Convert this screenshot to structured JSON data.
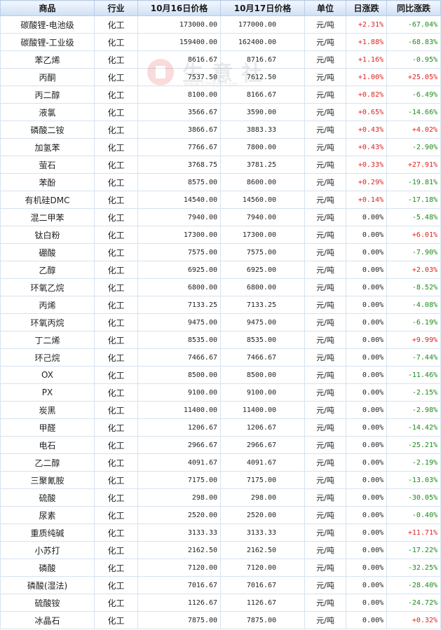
{
  "table": {
    "headers": [
      "商品",
      "行业",
      "10月16日价格",
      "10月17日价格",
      "单位",
      "日涨跌",
      "同比涨跌"
    ],
    "rows": [
      {
        "name": "碳酸锂-电池级",
        "industry": "化工",
        "p16": "173000.00",
        "p17": "177000.00",
        "unit": "元/吨",
        "day": "+2.31%",
        "yoy": "-67.04%"
      },
      {
        "name": "碳酸锂-工业级",
        "industry": "化工",
        "p16": "159400.00",
        "p17": "162400.00",
        "unit": "元/吨",
        "day": "+1.88%",
        "yoy": "-68.83%"
      },
      {
        "name": "苯乙烯",
        "industry": "化工",
        "p16": "8616.67",
        "p17": "8716.67",
        "unit": "元/吨",
        "day": "+1.16%",
        "yoy": "-0.95%"
      },
      {
        "name": "丙酮",
        "industry": "化工",
        "p16": "7537.50",
        "p17": "7612.50",
        "unit": "元/吨",
        "day": "+1.00%",
        "yoy": "+25.05%"
      },
      {
        "name": "丙二醇",
        "industry": "化工",
        "p16": "8100.00",
        "p17": "8166.67",
        "unit": "元/吨",
        "day": "+0.82%",
        "yoy": "-6.49%"
      },
      {
        "name": "液氯",
        "industry": "化工",
        "p16": "3566.67",
        "p17": "3590.00",
        "unit": "元/吨",
        "day": "+0.65%",
        "yoy": "-14.66%"
      },
      {
        "name": "磷酸二铵",
        "industry": "化工",
        "p16": "3866.67",
        "p17": "3883.33",
        "unit": "元/吨",
        "day": "+0.43%",
        "yoy": "+4.02%"
      },
      {
        "name": "加氢苯",
        "industry": "化工",
        "p16": "7766.67",
        "p17": "7800.00",
        "unit": "元/吨",
        "day": "+0.43%",
        "yoy": "-2.90%"
      },
      {
        "name": "萤石",
        "industry": "化工",
        "p16": "3768.75",
        "p17": "3781.25",
        "unit": "元/吨",
        "day": "+0.33%",
        "yoy": "+27.91%"
      },
      {
        "name": "苯酚",
        "industry": "化工",
        "p16": "8575.00",
        "p17": "8600.00",
        "unit": "元/吨",
        "day": "+0.29%",
        "yoy": "-19.81%"
      },
      {
        "name": "有机硅DMC",
        "industry": "化工",
        "p16": "14540.00",
        "p17": "14560.00",
        "unit": "元/吨",
        "day": "+0.14%",
        "yoy": "-17.18%"
      },
      {
        "name": "混二甲苯",
        "industry": "化工",
        "p16": "7940.00",
        "p17": "7940.00",
        "unit": "元/吨",
        "day": "0.00%",
        "yoy": "-5.48%"
      },
      {
        "name": "钛白粉",
        "industry": "化工",
        "p16": "17300.00",
        "p17": "17300.00",
        "unit": "元/吨",
        "day": "0.00%",
        "yoy": "+6.01%"
      },
      {
        "name": "硼酸",
        "industry": "化工",
        "p16": "7575.00",
        "p17": "7575.00",
        "unit": "元/吨",
        "day": "0.00%",
        "yoy": "-7.90%"
      },
      {
        "name": "乙醇",
        "industry": "化工",
        "p16": "6925.00",
        "p17": "6925.00",
        "unit": "元/吨",
        "day": "0.00%",
        "yoy": "+2.03%"
      },
      {
        "name": "环氧乙烷",
        "industry": "化工",
        "p16": "6800.00",
        "p17": "6800.00",
        "unit": "元/吨",
        "day": "0.00%",
        "yoy": "-8.52%"
      },
      {
        "name": "丙烯",
        "industry": "化工",
        "p16": "7133.25",
        "p17": "7133.25",
        "unit": "元/吨",
        "day": "0.00%",
        "yoy": "-4.08%"
      },
      {
        "name": "环氧丙烷",
        "industry": "化工",
        "p16": "9475.00",
        "p17": "9475.00",
        "unit": "元/吨",
        "day": "0.00%",
        "yoy": "-6.19%"
      },
      {
        "name": "丁二烯",
        "industry": "化工",
        "p16": "8535.00",
        "p17": "8535.00",
        "unit": "元/吨",
        "day": "0.00%",
        "yoy": "+9.99%"
      },
      {
        "name": "环己烷",
        "industry": "化工",
        "p16": "7466.67",
        "p17": "7466.67",
        "unit": "元/吨",
        "day": "0.00%",
        "yoy": "-7.44%"
      },
      {
        "name": "OX",
        "industry": "化工",
        "p16": "8500.00",
        "p17": "8500.00",
        "unit": "元/吨",
        "day": "0.00%",
        "yoy": "-11.46%"
      },
      {
        "name": "PX",
        "industry": "化工",
        "p16": "9100.00",
        "p17": "9100.00",
        "unit": "元/吨",
        "day": "0.00%",
        "yoy": "-2.15%"
      },
      {
        "name": "炭黑",
        "industry": "化工",
        "p16": "11400.00",
        "p17": "11400.00",
        "unit": "元/吨",
        "day": "0.00%",
        "yoy": "-2.98%"
      },
      {
        "name": "甲醛",
        "industry": "化工",
        "p16": "1206.67",
        "p17": "1206.67",
        "unit": "元/吨",
        "day": "0.00%",
        "yoy": "-14.42%"
      },
      {
        "name": "电石",
        "industry": "化工",
        "p16": "2966.67",
        "p17": "2966.67",
        "unit": "元/吨",
        "day": "0.00%",
        "yoy": "-25.21%"
      },
      {
        "name": "乙二醇",
        "industry": "化工",
        "p16": "4091.67",
        "p17": "4091.67",
        "unit": "元/吨",
        "day": "0.00%",
        "yoy": "-2.19%"
      },
      {
        "name": "三聚氰胺",
        "industry": "化工",
        "p16": "7175.00",
        "p17": "7175.00",
        "unit": "元/吨",
        "day": "0.00%",
        "yoy": "-13.03%"
      },
      {
        "name": "硫酸",
        "industry": "化工",
        "p16": "298.00",
        "p17": "298.00",
        "unit": "元/吨",
        "day": "0.00%",
        "yoy": "-30.05%"
      },
      {
        "name": "尿素",
        "industry": "化工",
        "p16": "2520.00",
        "p17": "2520.00",
        "unit": "元/吨",
        "day": "0.00%",
        "yoy": "-0.40%"
      },
      {
        "name": "重质纯碱",
        "industry": "化工",
        "p16": "3133.33",
        "p17": "3133.33",
        "unit": "元/吨",
        "day": "0.00%",
        "yoy": "+11.71%"
      },
      {
        "name": "小苏打",
        "industry": "化工",
        "p16": "2162.50",
        "p17": "2162.50",
        "unit": "元/吨",
        "day": "0.00%",
        "yoy": "-17.22%"
      },
      {
        "name": "磷酸",
        "industry": "化工",
        "p16": "7120.00",
        "p17": "7120.00",
        "unit": "元/吨",
        "day": "0.00%",
        "yoy": "-32.25%"
      },
      {
        "name": "磷酸(湿法)",
        "industry": "化工",
        "p16": "7016.67",
        "p17": "7016.67",
        "unit": "元/吨",
        "day": "0.00%",
        "yoy": "-28.40%"
      },
      {
        "name": "硫酸铵",
        "industry": "化工",
        "p16": "1126.67",
        "p17": "1126.67",
        "unit": "元/吨",
        "day": "0.00%",
        "yoy": "-24.72%"
      },
      {
        "name": "冰晶石",
        "industry": "化工",
        "p16": "7875.00",
        "p17": "7875.00",
        "unit": "元/吨",
        "day": "0.00%",
        "yoy": "+0.32%"
      }
    ]
  },
  "watermark": {
    "text": "生意社",
    "url": "www.100ppi.com"
  },
  "colors": {
    "up": "#e02020",
    "down": "#1a8a1a",
    "header_bg": "#cfe0f5",
    "name_text": "#1f3f8f"
  }
}
